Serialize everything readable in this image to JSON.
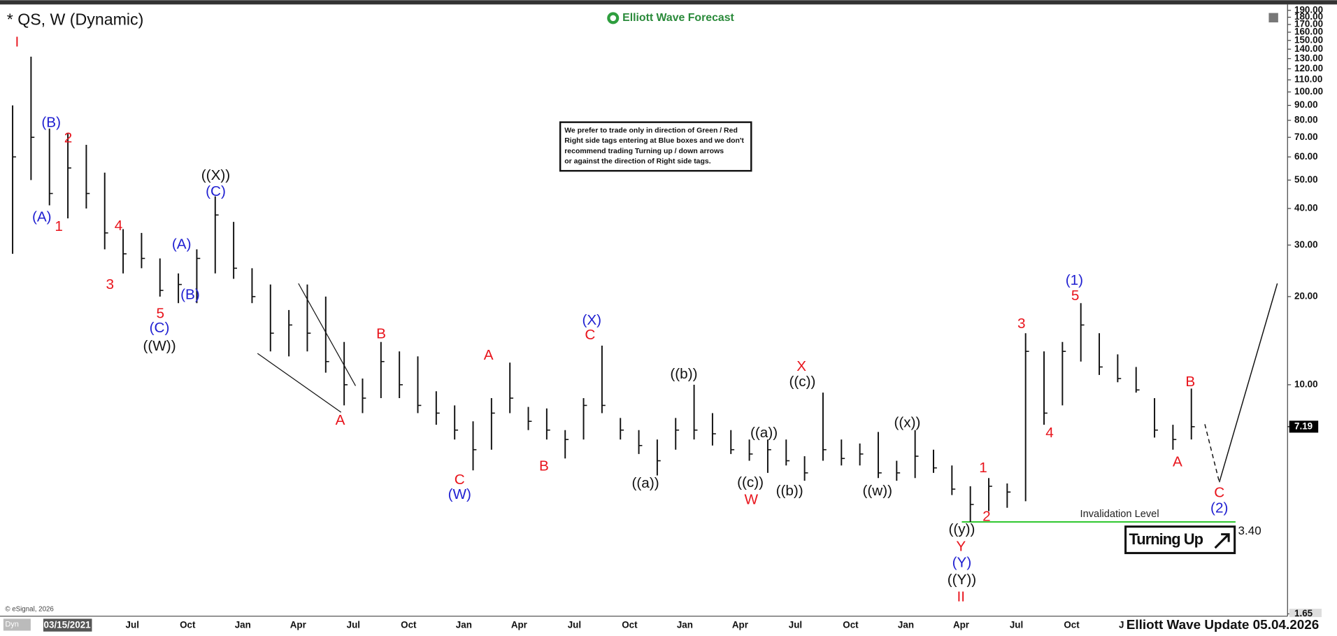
{
  "chart_data": {
    "type": "ohlc",
    "title": "* QS, W (Dynamic)",
    "brand": "Elliott Wave Forecast",
    "footer": "Elliott Wave Update 05.04.2026",
    "copyright": "© eSignal, 2026",
    "badge": "Dyn",
    "note": [
      "We prefer to trade only in direction of Green / Red",
      "Right side tags entering at Blue boxes and we don't",
      "recommend trading Turning up / down arrows",
      "or against the direction of Right side tags."
    ],
    "signal": "Turning Up",
    "log_scale": true,
    "bar_color": "#111111",
    "categories": [
      null,
      null,
      null,
      "03/15/2021",
      null,
      null,
      null,
      "Jul",
      null,
      null,
      "Oct",
      null,
      null,
      "Jan",
      null,
      null,
      "Apr",
      null,
      null,
      "Jul",
      null,
      null,
      "Oct",
      null,
      null,
      "Jan",
      null,
      null,
      "Apr",
      null,
      null,
      "Jul",
      null,
      null,
      "Oct",
      null,
      null,
      "Jan",
      null,
      null,
      "Apr",
      null,
      null,
      "Jul",
      null,
      null,
      "Oct",
      null,
      null,
      "Jan",
      null,
      null,
      "Apr",
      null,
      null,
      "Jul",
      null,
      null,
      "Oct",
      null,
      null,
      "Jan",
      null,
      null,
      null
    ],
    "high": [
      90,
      132,
      75,
      72,
      66,
      53,
      34,
      33,
      27,
      24,
      29,
      44,
      36,
      25,
      22,
      18,
      22,
      20,
      14,
      10.5,
      14,
      13,
      12.5,
      9.5,
      8.5,
      7.5,
      9,
      11.9,
      8.4,
      8.3,
      7,
      9,
      13.6,
      7.7,
      7,
      6.5,
      7.7,
      10,
      8,
      7,
      6.5,
      6.5,
      6.5,
      5.7,
      9.4,
      6.5,
      6.3,
      6.9,
      5.5,
      7,
      6,
      5.3,
      4.5,
      4.8,
      4.6,
      15,
      13,
      14,
      19,
      15,
      12.7,
      11.5,
      9,
      7.3,
      9.7
    ],
    "low": [
      28,
      50,
      41,
      37,
      40,
      29,
      24,
      25,
      20,
      19,
      19,
      24,
      23,
      19,
      13,
      12.5,
      13,
      11,
      8.5,
      8,
      9,
      9,
      8,
      7.3,
      6.5,
      5.1,
      6,
      8,
      7,
      6.5,
      5.6,
      6.5,
      8,
      6.5,
      5.8,
      4.9,
      6,
      6.5,
      6.2,
      5.8,
      5.5,
      5,
      5.3,
      4.7,
      5.5,
      5.3,
      5.3,
      4.8,
      4.7,
      4.8,
      5,
      4.2,
      3.4,
      3.7,
      3.8,
      4,
      7.3,
      8.5,
      12,
      10.8,
      10.2,
      9.4,
      6.6,
      6,
      6.5
    ],
    "close": [
      60,
      70,
      45,
      55,
      45,
      33,
      28,
      27,
      21,
      22,
      27,
      38,
      25,
      20,
      15,
      16,
      15,
      12,
      10,
      9,
      12,
      10,
      8.5,
      8,
      7,
      6,
      8,
      9,
      7.5,
      7,
      6.5,
      8.5,
      8.5,
      7,
      6.2,
      5.5,
      7,
      7,
      6.8,
      6,
      5.8,
      6,
      5.5,
      5,
      6,
      5.6,
      5.8,
      5,
      5,
      5.7,
      5.2,
      4.4,
      3.9,
      4.5,
      4.3,
      13,
      8,
      13,
      16,
      11.5,
      10.5,
      9.6,
      7,
      6.5,
      7.19
    ],
    "ylim": [
      1.62,
      199
    ],
    "yticks": [
      {
        "value": 190,
        "label": "190.00"
      },
      {
        "value": 180,
        "label": "180.00"
      },
      {
        "value": 170,
        "label": "170.00"
      },
      {
        "value": 160,
        "label": "160.00"
      },
      {
        "value": 150,
        "label": "150.00"
      },
      {
        "value": 140,
        "label": "140.00"
      },
      {
        "value": 130,
        "label": "130.00"
      },
      {
        "value": 120,
        "label": "120.00"
      },
      {
        "value": 110,
        "label": "110.00"
      },
      {
        "value": 100,
        "label": "100.00"
      },
      {
        "value": 90,
        "label": "90.00"
      },
      {
        "value": 80,
        "label": "80.00"
      },
      {
        "value": 70,
        "label": "70.00"
      },
      {
        "value": 60,
        "label": "60.00"
      },
      {
        "value": 50,
        "label": "50.00"
      },
      {
        "value": 40,
        "label": "40.00"
      },
      {
        "value": 30,
        "label": "30.00"
      },
      {
        "value": 20,
        "label": "20.00"
      },
      {
        "value": 10,
        "label": "10.00"
      },
      {
        "value": 1.65,
        "label": "1.65"
      }
    ],
    "last_price": {
      "value": 7.19,
      "label": "7.19"
    },
    "invalidation": {
      "value": 3.4,
      "label": "3.40",
      "text": "Invalidation Level",
      "color": "#22c422"
    },
    "annotations": [
      {
        "text": "I",
        "color": "#e8141c"
      },
      {
        "text": "(B)",
        "color": "#1f1fd1"
      },
      {
        "text": "2",
        "color": "#e8141c"
      },
      {
        "text": "(A)",
        "color": "#1f1fd1"
      },
      {
        "text": "1",
        "color": "#e8141c"
      },
      {
        "text": "4",
        "color": "#e8141c"
      },
      {
        "text": "3",
        "color": "#e8141c"
      },
      {
        "text": "5",
        "color": "#e8141c"
      },
      {
        "text": "(C)",
        "color": "#1f1fd1"
      },
      {
        "text": "((W))",
        "color": "#111111"
      },
      {
        "text": "(A)",
        "color": "#1f1fd1"
      },
      {
        "text": "(B)",
        "color": "#1f1fd1"
      },
      {
        "text": "((X))",
        "color": "#111111"
      },
      {
        "text": "(C)",
        "color": "#1f1fd1"
      },
      {
        "text": "A",
        "color": "#e8141c"
      },
      {
        "text": "B",
        "color": "#e8141c"
      },
      {
        "text": "C",
        "color": "#e8141c"
      },
      {
        "text": "(W)",
        "color": "#1f1fd1"
      },
      {
        "text": "A",
        "color": "#e8141c"
      },
      {
        "text": "B",
        "color": "#e8141c"
      },
      {
        "text": "(X)",
        "color": "#1f1fd1"
      },
      {
        "text": "C",
        "color": "#e8141c"
      },
      {
        "text": "((a))",
        "color": "#111111"
      },
      {
        "text": "((b))",
        "color": "#111111"
      },
      {
        "text": "((c))",
        "color": "#111111"
      },
      {
        "text": "W",
        "color": "#e8141c"
      },
      {
        "text": "((a))",
        "color": "#111111"
      },
      {
        "text": "((b))",
        "color": "#111111"
      },
      {
        "text": "X",
        "color": "#e8141c"
      },
      {
        "text": "((c))",
        "color": "#111111"
      },
      {
        "text": "((w))",
        "color": "#111111"
      },
      {
        "text": "((x))",
        "color": "#111111"
      },
      {
        "text": "1",
        "color": "#e8141c"
      },
      {
        "text": "2",
        "color": "#e8141c"
      },
      {
        "text": "((y))",
        "color": "#111111"
      },
      {
        "text": "Y",
        "color": "#e8141c"
      },
      {
        "text": "(Y)",
        "color": "#1f1fd1"
      },
      {
        "text": "((Y))",
        "color": "#111111"
      },
      {
        "text": "II",
        "color": "#e8141c"
      },
      {
        "text": "3",
        "color": "#e8141c"
      },
      {
        "text": "4",
        "color": "#e8141c"
      },
      {
        "text": "(1)",
        "color": "#1f1fd1"
      },
      {
        "text": "5",
        "color": "#e8141c"
      },
      {
        "text": "B",
        "color": "#e8141c"
      },
      {
        "text": "A",
        "color": "#e8141c"
      },
      {
        "text": "C",
        "color": "#e8141c"
      },
      {
        "text": "(2)",
        "color": "#1f1fd1"
      }
    ]
  }
}
